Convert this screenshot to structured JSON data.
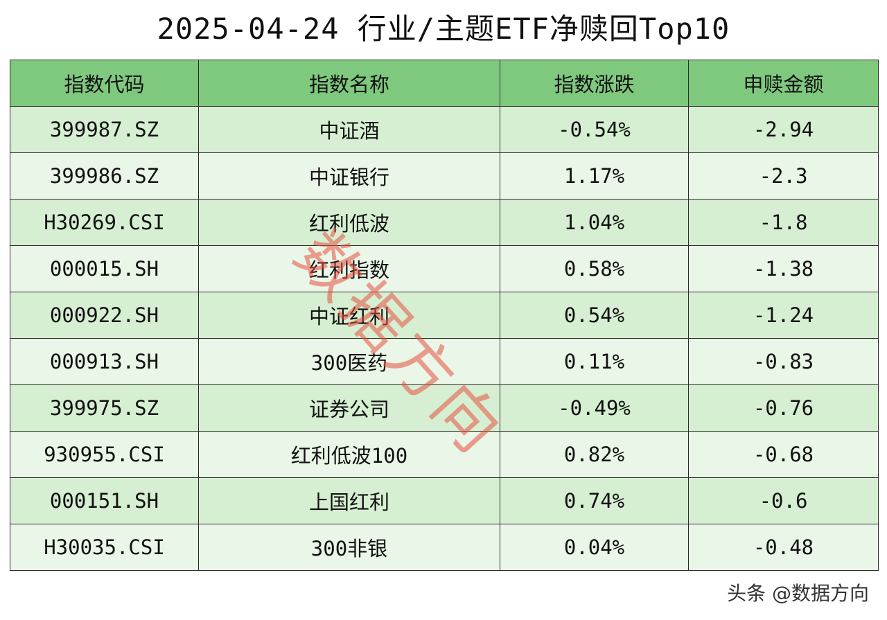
{
  "title": "2025-04-24 行业/主题ETF净赎回Top10",
  "table": {
    "headers": [
      "指数代码",
      "指数名称",
      "指数涨跌",
      "申赎金额"
    ],
    "rows": [
      [
        "399987.SZ",
        "中证酒",
        "-0.54%",
        "-2.94"
      ],
      [
        "399986.SZ",
        "中证银行",
        "1.17%",
        "-2.3"
      ],
      [
        "H30269.CSI",
        "红利低波",
        "1.04%",
        "-1.8"
      ],
      [
        "000015.SH",
        "红利指数",
        "0.58%",
        "-1.38"
      ],
      [
        "000922.SH",
        "中证红利",
        "0.54%",
        "-1.24"
      ],
      [
        "000913.SH",
        "300医药",
        "0.11%",
        "-0.83"
      ],
      [
        "399975.SZ",
        "证券公司",
        "-0.49%",
        "-0.76"
      ],
      [
        "930955.CSI",
        "红利低波100",
        "0.82%",
        "-0.68"
      ],
      [
        "000151.SH",
        "上国红利",
        "0.74%",
        "-0.6"
      ],
      [
        "H30035.CSI",
        "300非银",
        "0.04%",
        "-0.48"
      ]
    ]
  },
  "watermark": "数据方向",
  "footer": "头条 @数据方向",
  "colors": {
    "header_bg": "#7fc97f",
    "row_odd_bg": "#d6efd2",
    "row_even_bg": "#eaf6e7",
    "watermark": "#e85040"
  }
}
